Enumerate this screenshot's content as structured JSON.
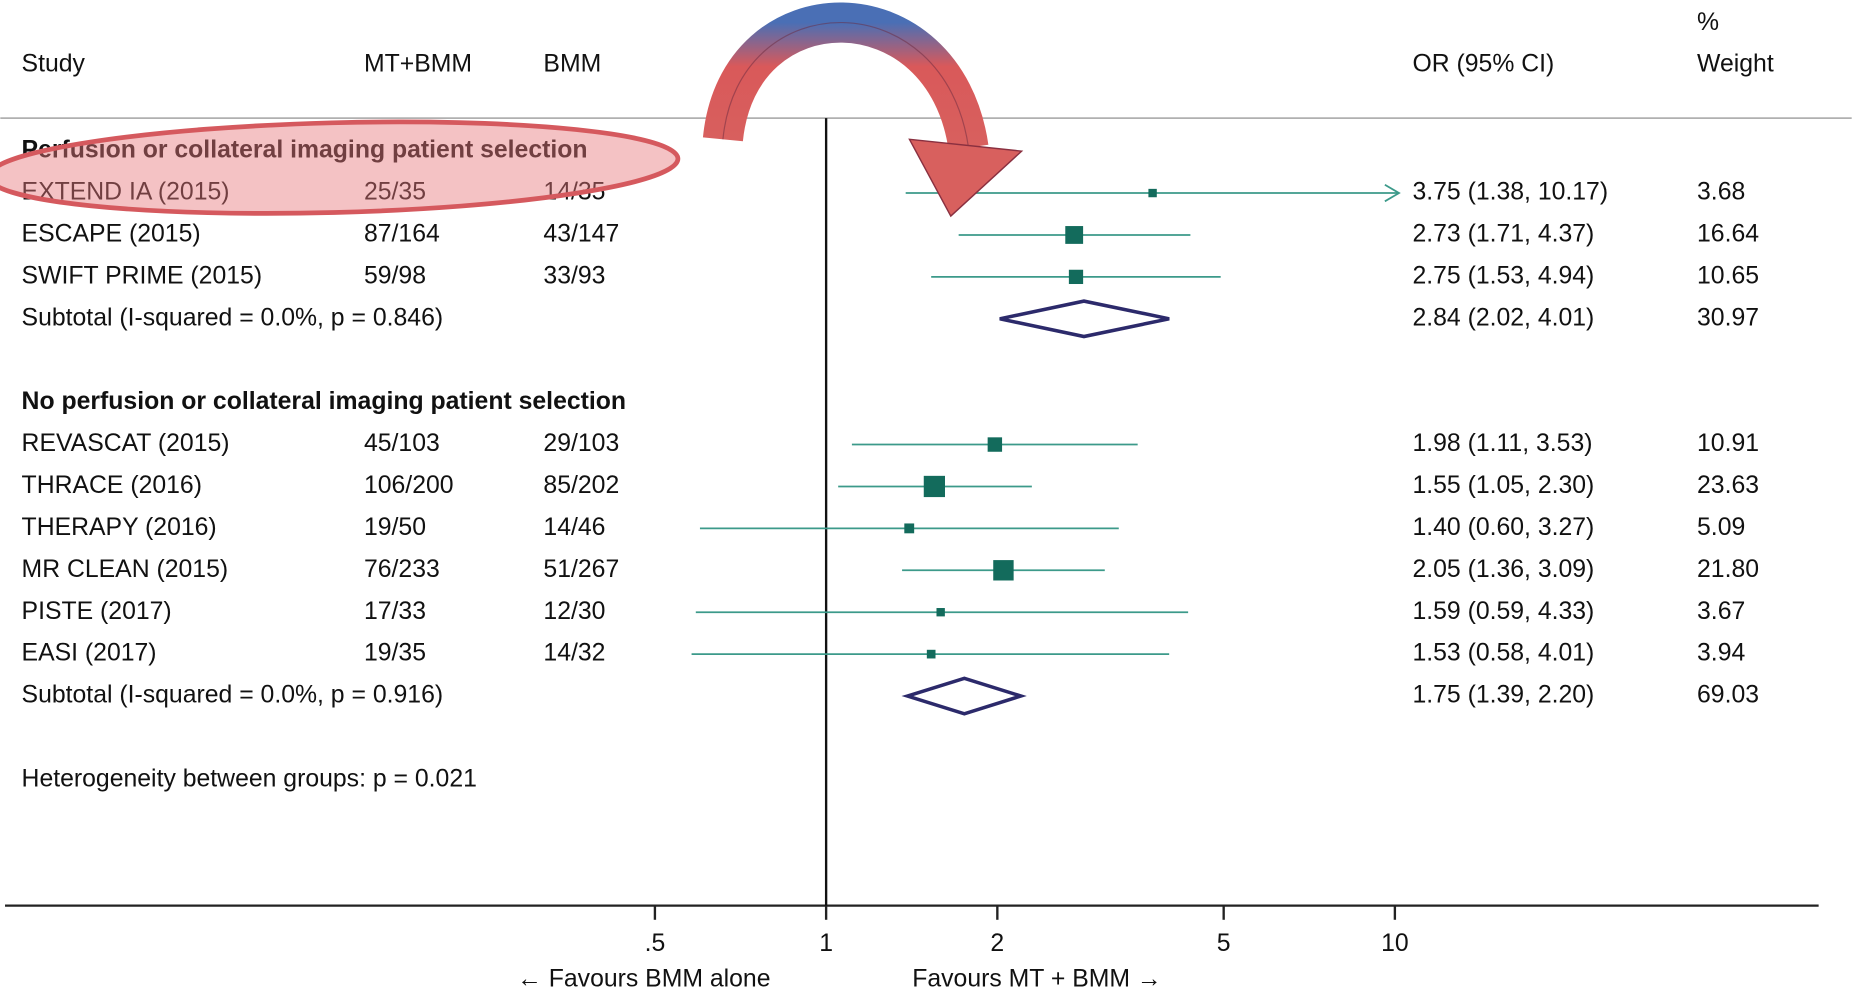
{
  "chart_data": {
    "type": "forest",
    "headers": {
      "study": "Study",
      "treatment": "MT+BMM",
      "control": "BMM",
      "effect": "OR (95% CI)",
      "weight_top": "%",
      "weight": "Weight"
    },
    "groups": [
      {
        "title": "Perfusion or collateral imaging patient selection",
        "studies": [
          {
            "name": "EXTEND IA (2015)",
            "treatment": "25/35",
            "control": "14/35",
            "or": 3.75,
            "lower": 1.38,
            "upper": 10.17,
            "or_ci": "3.75 (1.38, 10.17)",
            "weight": 3.68
          },
          {
            "name": "ESCAPE (2015)",
            "treatment": "87/164",
            "control": "43/147",
            "or": 2.73,
            "lower": 1.71,
            "upper": 4.37,
            "or_ci": "2.73 (1.71, 4.37)",
            "weight": 16.64
          },
          {
            "name": "SWIFT PRIME (2015)",
            "treatment": "59/98",
            "control": "33/93",
            "or": 2.75,
            "lower": 1.53,
            "upper": 4.94,
            "or_ci": "2.75 (1.53, 4.94)",
            "weight": 10.65
          }
        ],
        "subtotal": {
          "label": "Subtotal  (I-squared = 0.0%, p = 0.846)",
          "or": 2.84,
          "lower": 2.02,
          "upper": 4.01,
          "or_ci": "2.84 (2.02, 4.01)",
          "weight": 30.97
        }
      },
      {
        "title": "No perfusion or collateral imaging patient selection",
        "studies": [
          {
            "name": "REVASCAT (2015)",
            "treatment": "45/103",
            "control": "29/103",
            "or": 1.98,
            "lower": 1.11,
            "upper": 3.53,
            "or_ci": "1.98 (1.11, 3.53)",
            "weight": 10.91
          },
          {
            "name": "THRACE (2016)",
            "treatment": "106/200",
            "control": "85/202",
            "or": 1.55,
            "lower": 1.05,
            "upper": 2.3,
            "or_ci": "1.55 (1.05, 2.30)",
            "weight": 23.63
          },
          {
            "name": "THERAPY (2016)",
            "treatment": "19/50",
            "control": "14/46",
            "or": 1.4,
            "lower": 0.6,
            "upper": 3.27,
            "or_ci": "1.40 (0.60, 3.27)",
            "weight": 5.09
          },
          {
            "name": "MR CLEAN (2015)",
            "treatment": "76/233",
            "control": "51/267",
            "or": 2.05,
            "lower": 1.36,
            "upper": 3.09,
            "or_ci": "2.05 (1.36, 3.09)",
            "weight": {
              "value": 21.8,
              "label": "21.80"
            }
          },
          {
            "name": "PISTE (2017)",
            "treatment": "17/33",
            "control": "12/30",
            "or": 1.59,
            "lower": 0.59,
            "upper": 4.33,
            "or_ci": "1.59 (0.59, 4.33)",
            "weight": 3.67
          },
          {
            "name": "EASI (2017)",
            "treatment": "19/35",
            "control": "14/32",
            "or": 1.53,
            "lower": 0.58,
            "upper": 4.01,
            "or_ci": "1.53 (0.58, 4.01)",
            "weight": 3.94
          }
        ],
        "subtotal": {
          "label": "Subtotal  (I-squared = 0.0%, p = 0.916)",
          "or": 1.75,
          "lower": 1.39,
          "upper": 2.2,
          "or_ci": "1.75 (1.39, 2.20)",
          "weight": 69.03
        }
      }
    ],
    "heterogeneity": "Heterogeneity between groups: p = 0.021",
    "xscale": "log",
    "xlim": [
      0.036,
      55.6
    ],
    "xticks": [
      {
        "value": 0.5,
        "label": ".5"
      },
      1,
      2,
      5,
      10
    ],
    "null_line": 1,
    "xlabel_left": "← Favours BMM alone",
    "xlabel_right": "Favours MT + BMM →",
    "color": "#136b5c",
    "ci_color": "#3c9a8a",
    "diamond_color": "#2c2a6b"
  }
}
